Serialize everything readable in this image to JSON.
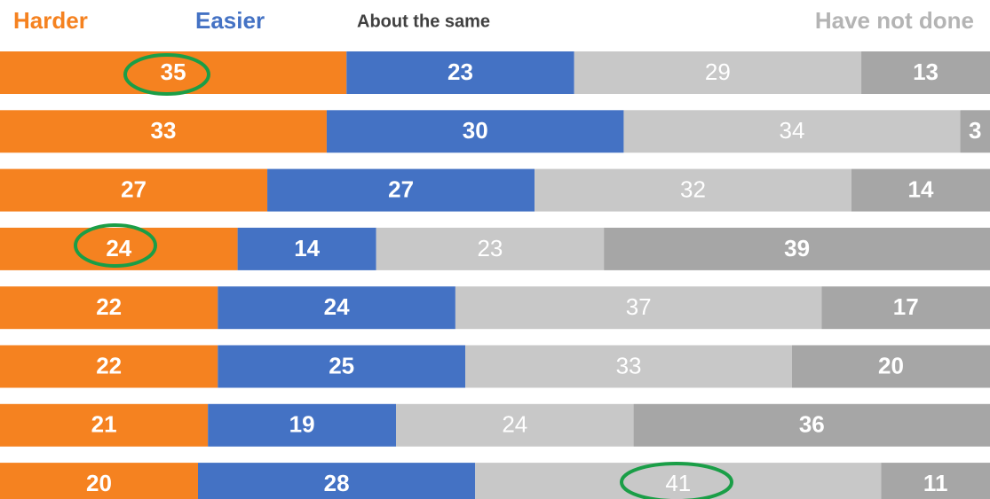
{
  "chart_data": {
    "type": "bar",
    "orientation": "horizontal",
    "stacked": true,
    "xlim": [
      0,
      100
    ],
    "series": [
      {
        "name": "Harder",
        "color": "#f58220",
        "values": [
          35,
          33,
          27,
          24,
          22,
          22,
          21,
          20
        ]
      },
      {
        "name": "Easier",
        "color": "#4472c4",
        "values": [
          23,
          30,
          27,
          14,
          24,
          25,
          19,
          28
        ]
      },
      {
        "name": "About the same",
        "color": "#c8c8c8",
        "values": [
          29,
          34,
          32,
          23,
          37,
          33,
          24,
          41
        ]
      },
      {
        "name": "Have not done",
        "color": "#a6a6a6",
        "values": [
          13,
          3,
          14,
          39,
          17,
          20,
          36,
          11
        ]
      }
    ]
  }
}
